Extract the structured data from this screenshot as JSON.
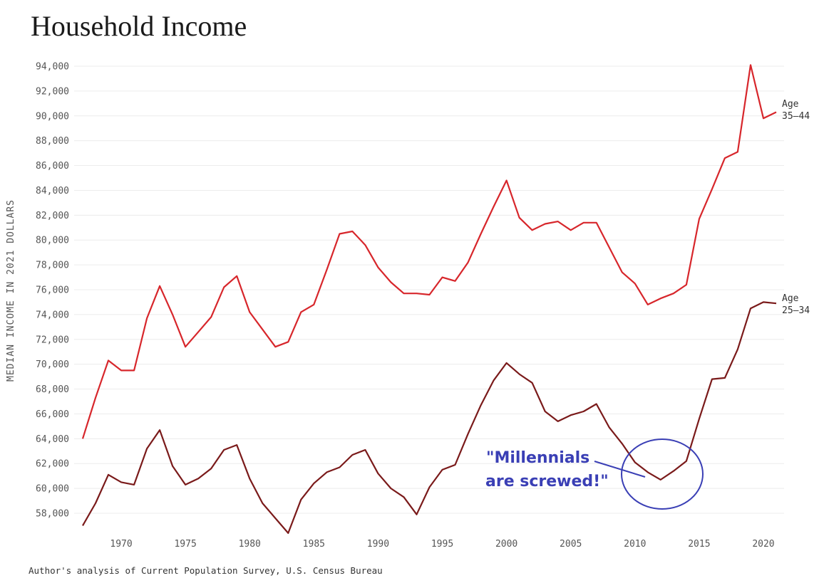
{
  "chart_data": {
    "type": "line",
    "title": "Household Income",
    "ylabel": "MEDIAN INCOME IN 2021 DOLLARS",
    "xlabel": "",
    "source": "Author's analysis of Current Population Survey, U.S. Census Bureau",
    "xlim": [
      1967,
      2021
    ],
    "ylim": [
      56000,
      95000
    ],
    "x_ticks": [
      1970,
      1975,
      1980,
      1985,
      1990,
      1995,
      2000,
      2005,
      2010,
      2015,
      2020
    ],
    "y_ticks": [
      58000,
      60000,
      62000,
      64000,
      66000,
      68000,
      70000,
      72000,
      74000,
      76000,
      78000,
      80000,
      82000,
      84000,
      86000,
      88000,
      90000,
      92000,
      94000
    ],
    "y_tick_labels": [
      "58,000",
      "60,000",
      "62,000",
      "64,000",
      "66,000",
      "68,000",
      "70,000",
      "72,000",
      "74,000",
      "76,000",
      "78,000",
      "80,000",
      "82,000",
      "84,000",
      "86,000",
      "88,000",
      "90,000",
      "92,000",
      "94,000"
    ],
    "grid": "horizontal",
    "x": [
      1967,
      1968,
      1969,
      1970,
      1971,
      1972,
      1973,
      1974,
      1975,
      1976,
      1977,
      1978,
      1979,
      1980,
      1981,
      1982,
      1983,
      1984,
      1985,
      1986,
      1987,
      1988,
      1989,
      1990,
      1991,
      1992,
      1993,
      1994,
      1995,
      1996,
      1997,
      1998,
      1999,
      2000,
      2001,
      2002,
      2003,
      2004,
      2005,
      2006,
      2007,
      2008,
      2009,
      2010,
      2011,
      2012,
      2013,
      2014,
      2015,
      2016,
      2017,
      2018,
      2019,
      2020,
      2021
    ],
    "series": [
      {
        "label_line1": "Age",
        "label_line2": "35–44",
        "color": "#d7262b",
        "values": [
          64000,
          67300,
          70300,
          69500,
          69500,
          73700,
          76300,
          74000,
          71400,
          72600,
          73800,
          76200,
          77100,
          74200,
          72800,
          71400,
          71800,
          74200,
          74800,
          77600,
          80500,
          80700,
          79600,
          77800,
          76600,
          75700,
          75700,
          75600,
          77000,
          76700,
          78200,
          80500,
          82700,
          84800,
          81800,
          80800,
          81300,
          81500,
          80800,
          81400,
          81400,
          79400,
          77400,
          76500,
          74800,
          75300,
          75700,
          76400,
          81700,
          84100,
          86600,
          87100,
          94100,
          89800,
          90300
        ]
      },
      {
        "label_line1": "Age",
        "label_line2": "25–34",
        "color": "#7a1a1a",
        "values": [
          57000,
          58800,
          61100,
          60500,
          60300,
          63200,
          64700,
          61800,
          60300,
          60800,
          61600,
          63100,
          63500,
          60800,
          58800,
          57600,
          56400,
          59100,
          60400,
          61300,
          61700,
          62700,
          63100,
          61200,
          60000,
          59300,
          57900,
          60100,
          61500,
          61900,
          64400,
          66700,
          68700,
          70100,
          69200,
          68500,
          66200,
          65400,
          65900,
          66200,
          66800,
          64900,
          63600,
          62100,
          61300,
          60700,
          61400,
          62200,
          65600,
          68800,
          68900,
          71200,
          74500,
          75000,
          74900
        ]
      }
    ],
    "annotation": {
      "text_line1": "\"Millennials",
      "text_line2": "are screwed!\"",
      "color": "#3a3fb5"
    }
  }
}
